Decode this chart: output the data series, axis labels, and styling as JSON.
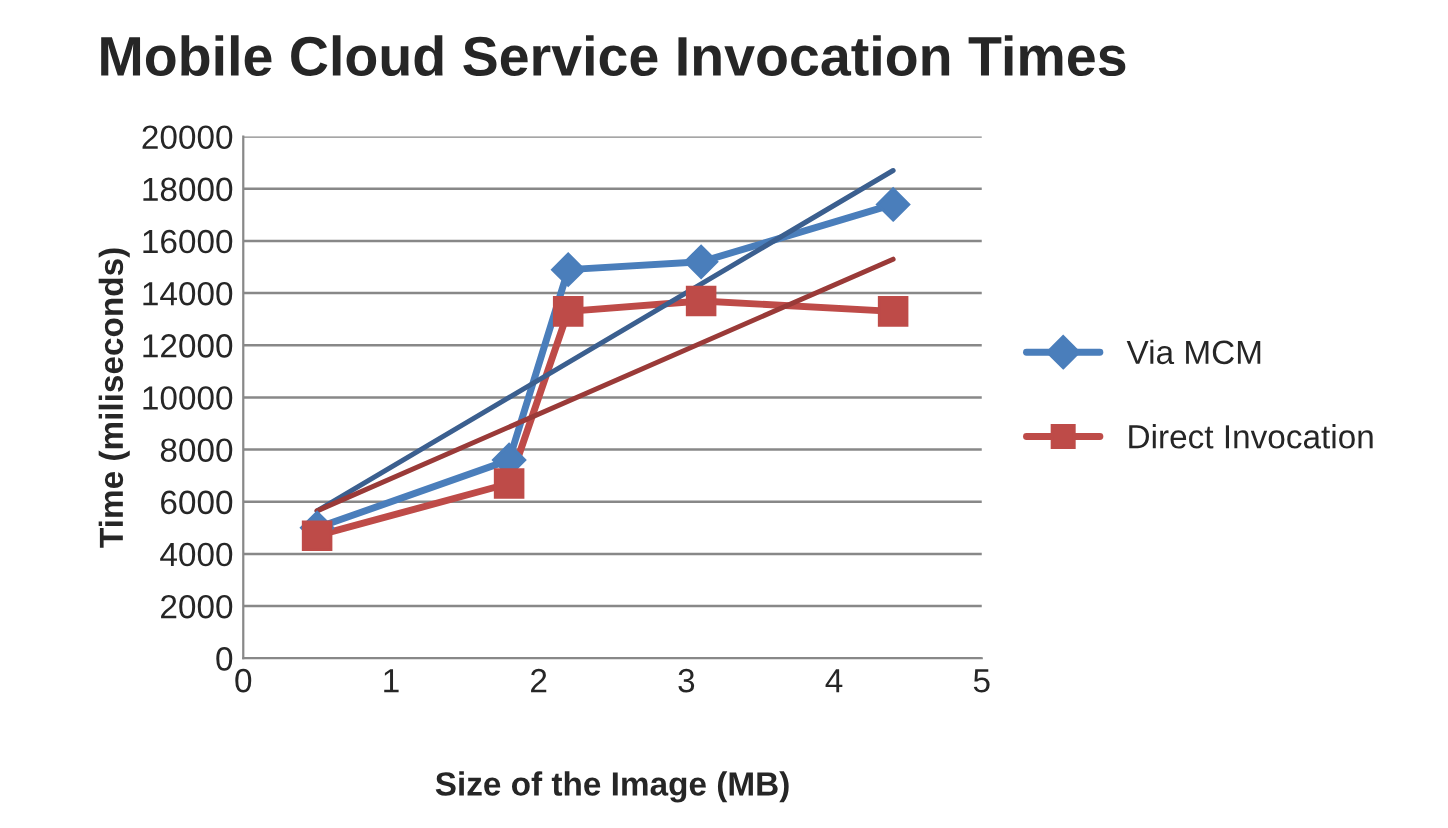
{
  "chart_data": {
    "type": "line",
    "title": "Mobile Cloud Service Invocation Times",
    "xlabel": "Size of the Image (MB)",
    "ylabel": "Time (miliseconds)",
    "xlim": [
      0,
      5
    ],
    "xticks": [
      0,
      1,
      2,
      3,
      4,
      5
    ],
    "ylim": [
      0,
      20000
    ],
    "yticks": [
      0,
      2000,
      4000,
      6000,
      8000,
      10000,
      12000,
      14000,
      16000,
      18000,
      20000
    ],
    "grid": "y",
    "legend": "right",
    "series": [
      {
        "name": "Via MCM",
        "color": "#4a7ebb",
        "marker": "diamond",
        "x": [
          0.5,
          1.8,
          2.2,
          3.1,
          4.4
        ],
        "values": [
          5000,
          7600,
          14900,
          15200,
          17400
        ]
      },
      {
        "name": "Direct Invocation",
        "color": "#be4b48",
        "marker": "square",
        "x": [
          0.5,
          1.8,
          2.2,
          3.1,
          4.4
        ],
        "values": [
          4700,
          6700,
          13300,
          13700,
          13300
        ]
      },
      {
        "color": "#3b5f8f",
        "marker": "none",
        "x": [
          0.5,
          4.4
        ],
        "values": [
          5650,
          18700
        ]
      },
      {
        "color": "#9a3a38",
        "marker": "none",
        "x": [
          0.5,
          4.4
        ],
        "values": [
          5650,
          15300
        ]
      }
    ]
  }
}
